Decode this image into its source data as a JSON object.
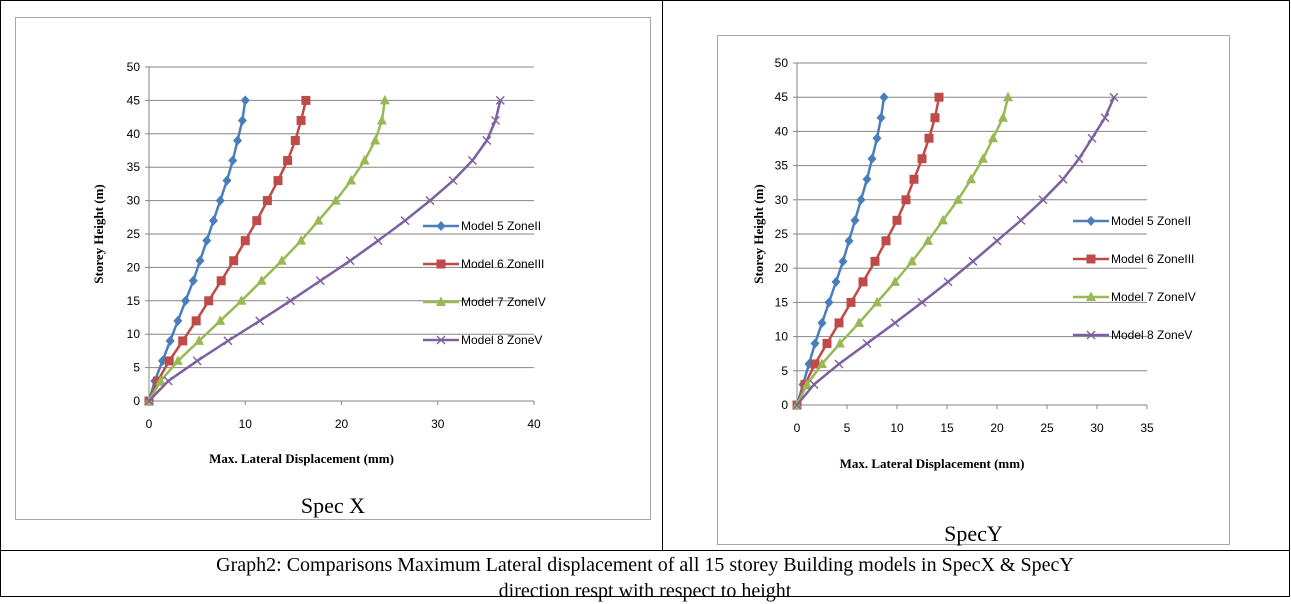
{
  "charts": [
    {
      "subcaption": "Spec X",
      "chart_data": {
        "type": "line",
        "title": "",
        "xlabel": "Max. Lateral Displacement (mm)",
        "ylabel": "Storey Height (m)",
        "xlim": [
          0,
          40
        ],
        "ylim": [
          0,
          50
        ],
        "xticks": [
          "0",
          "10",
          "20",
          "30",
          "40"
        ],
        "yticks": [
          "0",
          "5",
          "10",
          "15",
          "20",
          "25",
          "30",
          "35",
          "40",
          "45",
          "50"
        ],
        "grid": "horizontal",
        "legend_position": "right",
        "y": [
          0,
          3,
          6,
          9,
          12,
          15,
          18,
          21,
          24,
          27,
          30,
          33,
          36,
          39,
          42,
          45
        ],
        "series": [
          {
            "name": "Model 5 ZoneII",
            "color": "#4a7ebb",
            "marker": "diamond",
            "values": [
              0,
              0.6,
              1.4,
              2.2,
              3.0,
              3.8,
              4.6,
              5.3,
              6.0,
              6.7,
              7.4,
              8.1,
              8.7,
              9.2,
              9.7,
              10.0
            ]
          },
          {
            "name": "Model 6 ZoneIII",
            "color": "#be4b48",
            "marker": "square",
            "values": [
              0,
              0.9,
              2.1,
              3.5,
              4.9,
              6.2,
              7.5,
              8.8,
              10.0,
              11.2,
              12.3,
              13.4,
              14.4,
              15.2,
              15.8,
              16.3
            ]
          },
          {
            "name": "Model 7 ZoneIV",
            "color": "#98b954",
            "marker": "triangle",
            "values": [
              0,
              1.2,
              3.0,
              5.2,
              7.4,
              9.6,
              11.7,
              13.8,
              15.8,
              17.6,
              19.4,
              21.0,
              22.4,
              23.5,
              24.2,
              24.5
            ]
          },
          {
            "name": "Model 8 ZoneV",
            "color": "#7d60a0",
            "marker": "x",
            "values": [
              0,
              2.0,
              5.0,
              8.2,
              11.5,
              14.7,
              17.8,
              20.9,
              23.8,
              26.6,
              29.2,
              31.6,
              33.6,
              35.1,
              36.0,
              36.5
            ]
          }
        ]
      }
    },
    {
      "subcaption": "SpecY",
      "chart_data": {
        "type": "line",
        "title": "",
        "xlabel": "Max. Lateral Displacement (mm)",
        "ylabel": "Storey Height (m)",
        "xlim": [
          0,
          35
        ],
        "ylim": [
          0,
          50
        ],
        "xticks": [
          "0",
          "5",
          "10",
          "15",
          "20",
          "25",
          "30",
          "35"
        ],
        "yticks": [
          "0",
          "5",
          "10",
          "15",
          "20",
          "25",
          "30",
          "35",
          "40",
          "45",
          "50"
        ],
        "grid": "horizontal",
        "legend_position": "right",
        "y": [
          0,
          3,
          6,
          9,
          12,
          15,
          18,
          21,
          24,
          27,
          30,
          33,
          36,
          39,
          42,
          45
        ],
        "series": [
          {
            "name": "Model 5 ZoneII",
            "color": "#4a7ebb",
            "marker": "diamond",
            "values": [
              0,
              0.6,
              1.2,
              1.8,
              2.5,
              3.2,
              3.9,
              4.6,
              5.2,
              5.8,
              6.4,
              7.0,
              7.5,
              8.0,
              8.4,
              8.7
            ]
          },
          {
            "name": "Model 6 ZoneIII",
            "color": "#be4b48",
            "marker": "square",
            "values": [
              0,
              0.8,
              1.8,
              3.0,
              4.2,
              5.4,
              6.6,
              7.8,
              8.9,
              10.0,
              10.9,
              11.7,
              12.5,
              13.2,
              13.8,
              14.2
            ]
          },
          {
            "name": "Model 7 ZoneIV",
            "color": "#98b954",
            "marker": "triangle",
            "values": [
              0,
              1.0,
              2.5,
              4.3,
              6.2,
              8.0,
              9.8,
              11.5,
              13.1,
              14.6,
              16.1,
              17.4,
              18.6,
              19.6,
              20.6,
              21.1
            ]
          },
          {
            "name": "Model 8 ZoneV",
            "color": "#7d60a0",
            "marker": "x",
            "values": [
              0,
              1.7,
              4.2,
              7.0,
              9.8,
              12.5,
              15.1,
              17.6,
              20.0,
              22.4,
              24.6,
              26.6,
              28.2,
              29.5,
              30.8,
              31.7
            ]
          }
        ]
      }
    }
  ],
  "caption": {
    "line1": "Graph2: Comparisons Maximum Lateral displacement of all 15 storey Building models in SpecX & SpecY",
    "line2": "direction respt with respect to height"
  }
}
